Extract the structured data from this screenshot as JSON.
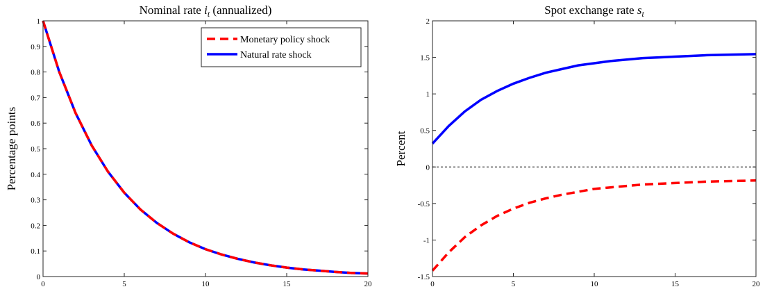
{
  "chart_data": [
    {
      "type": "line",
      "title": [
        "Nominal rate ",
        "i",
        "t",
        " (annualized)"
      ],
      "y_label": "Percentage points",
      "x": [
        0,
        1,
        2,
        3,
        4,
        5,
        6,
        7,
        8,
        9,
        10,
        11,
        12,
        13,
        14,
        15,
        16,
        17,
        18,
        19,
        20
      ],
      "series": [
        {
          "name": "Monetary policy shock",
          "color": "#ff0000",
          "dashed": true,
          "values": [
            1,
            0.8,
            0.64,
            0.512,
            0.41,
            0.328,
            0.262,
            0.21,
            0.168,
            0.134,
            0.107,
            0.086,
            0.069,
            0.055,
            0.044,
            0.035,
            0.028,
            0.023,
            0.018,
            0.014,
            0.012
          ]
        },
        {
          "name": "Natural rate shock",
          "color": "#0000ff",
          "dashed": false,
          "values": [
            1,
            0.8,
            0.64,
            0.512,
            0.41,
            0.328,
            0.262,
            0.21,
            0.168,
            0.134,
            0.107,
            0.086,
            0.069,
            0.055,
            0.044,
            0.035,
            0.028,
            0.023,
            0.018,
            0.014,
            0.012
          ]
        }
      ],
      "xlim": [
        0,
        20
      ],
      "xticks": [
        0,
        5,
        10,
        15,
        20
      ],
      "ylim": [
        0,
        1
      ],
      "yticks": [
        0,
        0.1,
        0.2,
        0.3,
        0.4,
        0.5,
        0.6,
        0.7,
        0.8,
        0.9,
        1
      ],
      "legend": "top-right"
    },
    {
      "type": "line",
      "title": [
        "Spot exchange rate ",
        "s",
        "t",
        ""
      ],
      "y_label": "Percent",
      "x": [
        0,
        1,
        2,
        3,
        4,
        5,
        6,
        7,
        8,
        9,
        10,
        11,
        12,
        13,
        14,
        15,
        16,
        17,
        18,
        19,
        20
      ],
      "series": [
        {
          "color": "#ff0000",
          "dashed": true,
          "values": [
            -1.42,
            -1.17,
            -0.96,
            -0.8,
            -0.67,
            -0.57,
            -0.49,
            -0.43,
            -0.38,
            -0.34,
            -0.3,
            -0.28,
            -0.26,
            -0.24,
            -0.23,
            -0.22,
            -0.21,
            -0.2,
            -0.195,
            -0.19,
            -0.185
          ]
        },
        {
          "color": "#0000ff",
          "dashed": false,
          "values": [
            0.32,
            0.56,
            0.76,
            0.92,
            1.04,
            1.14,
            1.22,
            1.29,
            1.34,
            1.39,
            1.42,
            1.45,
            1.47,
            1.49,
            1.5,
            1.51,
            1.52,
            1.53,
            1.535,
            1.54,
            1.545
          ]
        }
      ],
      "xlim": [
        0,
        20
      ],
      "xticks": [
        0,
        5,
        10,
        15,
        20
      ],
      "ylim": [
        -1.5,
        2
      ],
      "yticks": [
        -1.5,
        -1,
        -0.5,
        0,
        0.5,
        1,
        1.5,
        2
      ],
      "hline": 0
    }
  ]
}
